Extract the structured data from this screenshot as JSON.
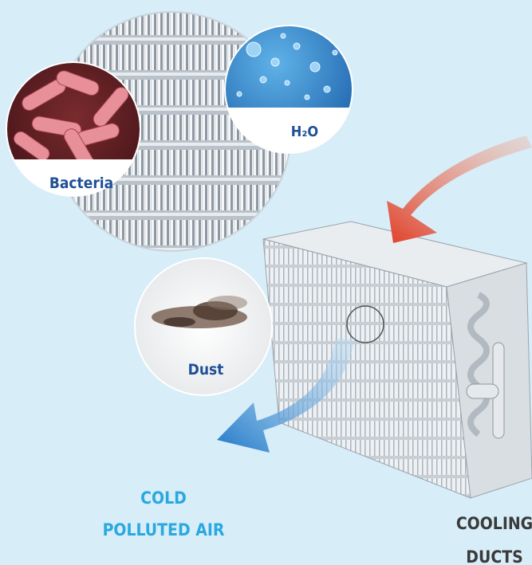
{
  "labels": {
    "bacteria": "Bacteria",
    "water": "H₂O",
    "dust": "Dust"
  },
  "captions": {
    "cold": "COLD",
    "polluted": "POLLUTED AIR",
    "cooling": "COOLING",
    "ducts": "DUCTS"
  }
}
